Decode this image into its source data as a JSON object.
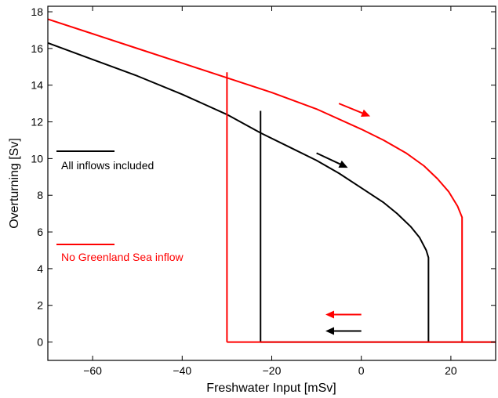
{
  "chart_data": {
    "type": "line",
    "title": "",
    "xlabel": "Freshwater Input [mSv]",
    "ylabel": "Overturning [Sv]",
    "xlim": [
      -70,
      30
    ],
    "ylim": [
      -1,
      18.3
    ],
    "x_ticks": [
      -60,
      -40,
      -20,
      0,
      20
    ],
    "y_ticks": [
      0,
      2,
      4,
      6,
      8,
      10,
      12,
      14,
      16,
      18
    ],
    "grid": false,
    "legend_placement": "left",
    "series": [
      {
        "name": "All inflows included",
        "color": "#000000",
        "x": [
          -70,
          -60,
          -50,
          -40,
          -30,
          -22.5,
          -15,
          -10,
          -5,
          0,
          5,
          8,
          11,
          13,
          14.5,
          15,
          15,
          30
        ],
        "y": [
          16.3,
          15.4,
          14.5,
          13.5,
          12.4,
          11.4,
          10.5,
          9.9,
          9.2,
          8.4,
          7.6,
          7.0,
          6.3,
          5.7,
          5.0,
          4.6,
          0,
          0
        ]
      },
      {
        "name": "No Greenland Sea inflow",
        "color": "#ff0000",
        "x": [
          -70,
          -60,
          -50,
          -40,
          -30,
          -20,
          -10,
          0,
          5,
          10,
          14,
          17,
          19.5,
          21.5,
          22.5,
          22.5,
          30
        ],
        "y": [
          17.6,
          16.8,
          16.0,
          15.2,
          14.4,
          13.6,
          12.7,
          11.6,
          11.0,
          10.3,
          9.6,
          8.9,
          8.2,
          7.4,
          6.8,
          0,
          0
        ]
      }
    ],
    "branch_lines": [
      {
        "series": "All inflows included",
        "color": "#000000",
        "x": [
          -22.5,
          -22.5
        ],
        "y": [
          0,
          12.6
        ]
      },
      {
        "series": "All inflows included",
        "color": "#000000",
        "x": [
          -22.5,
          15
        ],
        "y": [
          0,
          0
        ]
      },
      {
        "series": "No Greenland Sea inflow",
        "color": "#ff0000",
        "x": [
          -30,
          -30
        ],
        "y": [
          0,
          14.7
        ]
      },
      {
        "series": "No Greenland Sea inflow",
        "color": "#ff0000",
        "x": [
          -30,
          22.5
        ],
        "y": [
          0,
          0
        ]
      }
    ],
    "arrows": [
      {
        "color": "#ff0000",
        "from": [
          -5,
          13.0
        ],
        "to": [
          2,
          12.3
        ]
      },
      {
        "color": "#000000",
        "from": [
          -10,
          10.3
        ],
        "to": [
          -3,
          9.5
        ]
      },
      {
        "color": "#ff0000",
        "from": [
          0,
          1.5
        ],
        "to": [
          -8,
          1.5
        ]
      },
      {
        "color": "#000000",
        "from": [
          0,
          0.6
        ],
        "to": [
          -8,
          0.6
        ]
      }
    ]
  }
}
